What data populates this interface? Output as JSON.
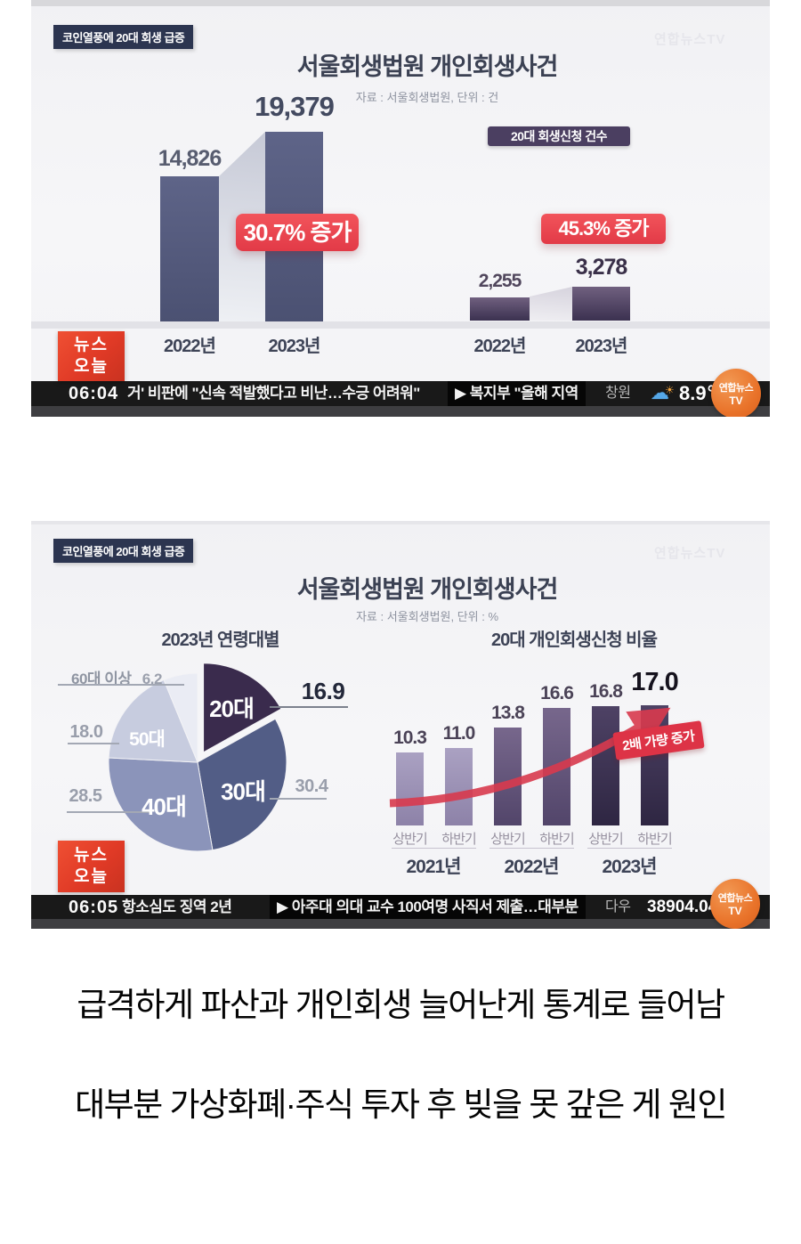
{
  "watermark": "연합뉴스TV",
  "shot1": {
    "topic_badge": "코인열풍에 20대 회생 급증",
    "title": "서울회생법원 개인회생사건",
    "subtitle": "자료 : 서울회생법원, 단위 : 건",
    "news_today_line1": "뉴스",
    "news_today_line2": "오늘",
    "ticker": {
      "time": "06:04",
      "headline": "거' 비판에 \"신속 적발했다고 비난…수긍 어려워\"",
      "next_item": "▶ 복지부 \"올해 지역",
      "city": "창원",
      "temperature": "8.9℃"
    },
    "logo_line1": "연합뉴스",
    "logo_line2": "TV"
  },
  "shot2": {
    "topic_badge": "코인열풍에 20대 회생 급증",
    "title": "서울회생법원 개인회생사건",
    "subtitle": "자료 : 서울회생법원, 단위 : %",
    "news_today_line1": "뉴스",
    "news_today_line2": "오늘",
    "ticker": {
      "time": "06:05",
      "headline": "항소심도 징역 2년",
      "next_item": "▶ 아주대 의대 교수 100여명 사직서 제출…대부분",
      "index_name": "다우",
      "index_value": "38904.04",
      "up_triangle": "▲"
    },
    "logo_line1": "연합뉴스",
    "logo_line2": "TV"
  },
  "chart_data": [
    {
      "type": "bar",
      "title": "서울회생법원 개인회생사건",
      "unit": "건",
      "categories": [
        "2022년",
        "2023년"
      ],
      "values": [
        14826,
        19379
      ],
      "value_labels": [
        "14,826",
        "19,379"
      ],
      "annotation": "30.7% 증가",
      "bar_color": "#545b7d"
    },
    {
      "type": "bar",
      "title": "20대 회생신청 건수",
      "unit": "건",
      "categories": [
        "2022년",
        "2023년"
      ],
      "values": [
        2255,
        3278
      ],
      "value_labels": [
        "2,255",
        "3,278"
      ],
      "annotation": "45.3% 증가",
      "bar_color": "#55486a"
    },
    {
      "type": "pie",
      "title": "2023년 연령대별",
      "unit": "%",
      "slices": [
        {
          "label": "20대",
          "value": 16.9,
          "display": "16.9",
          "color": "#3a2b4d",
          "exploded": true
        },
        {
          "label": "30대",
          "value": 30.4,
          "display": "30.4",
          "color": "#525d86",
          "exploded": false
        },
        {
          "label": "40대",
          "value": 28.5,
          "display": "28.5",
          "color": "#8b94ba",
          "exploded": false
        },
        {
          "label": "50대",
          "value": 18.0,
          "display": "18.0",
          "color": "#c7ccdf",
          "exploded": false
        },
        {
          "label": "60대 이상",
          "value": 6.2,
          "display": "6.2",
          "color": "#eaecf4",
          "exploded": false
        }
      ]
    },
    {
      "type": "bar",
      "title": "20대 개인회생신청 비율",
      "unit": "%",
      "group_labels": [
        "2021년",
        "2022년",
        "2023년"
      ],
      "categories": [
        "상반기",
        "하반기",
        "상반기",
        "하반기",
        "상반기",
        "하반기"
      ],
      "values": [
        10.3,
        11.0,
        13.8,
        16.6,
        16.8,
        17.0
      ],
      "value_labels": [
        "10.3",
        "11.0",
        "13.8",
        "16.6",
        "16.8",
        "17.0"
      ],
      "annotation": "2배 가량 증가",
      "ylim": [
        0,
        18
      ]
    }
  ],
  "captions": [
    "급격하게 파산과 개인회생 늘어난게 통계로 들어남",
    "대부분 가상화폐·주식 투자 후 빚을 못 갚은 게 원인"
  ]
}
